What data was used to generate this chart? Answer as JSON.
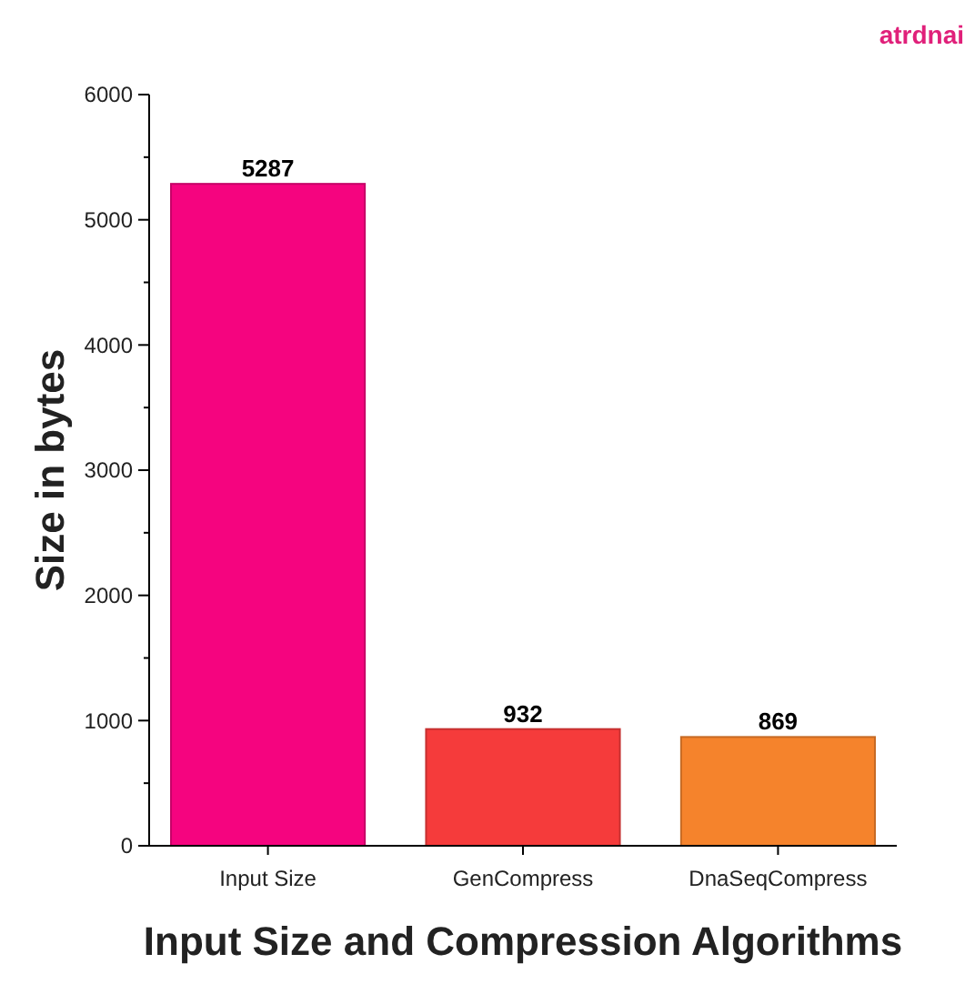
{
  "chart_data": {
    "type": "bar",
    "categories": [
      "Input Size",
      "GenCompress",
      "DnaSeqCompress"
    ],
    "values": [
      5287,
      932,
      869
    ],
    "colors": [
      "#f5047f",
      "#f53b3b",
      "#f5832c"
    ],
    "data_labels": true,
    "xlabel": "Input Size and Compression Algorithms",
    "ylabel": "Size in bytes",
    "annotations": [
      "atrdnai"
    ],
    "ylim": [
      0,
      6000
    ],
    "yticks": [
      0,
      {
        "value": 500,
        "label": null
      },
      1000,
      {
        "value": 1500,
        "label": null
      },
      2000,
      {
        "value": 2500,
        "label": null
      },
      3000,
      {
        "value": 3500,
        "label": null
      },
      4000,
      {
        "value": 4500,
        "label": null
      },
      5000,
      {
        "value": 5500,
        "label": null
      },
      6000
    ],
    "grid": false
  }
}
